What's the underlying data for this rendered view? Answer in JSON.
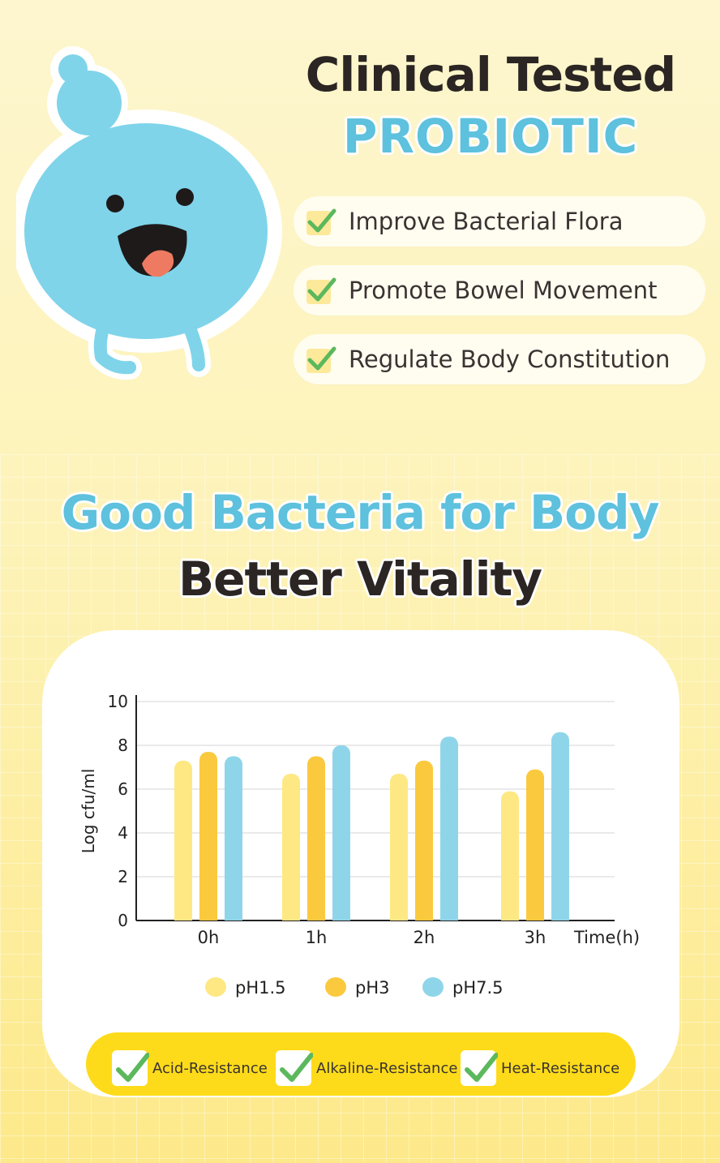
{
  "header": {
    "line1": "Clinical Tested",
    "line2": "PROBIOTIC"
  },
  "benefits": [
    {
      "label": "Improve Bacterial Flora"
    },
    {
      "label": "Promote Bowel Movement"
    },
    {
      "label": "Regulate Body Constitution"
    }
  ],
  "section": {
    "line1": "Good Bacteria for Body",
    "line2": "Better Vitality"
  },
  "chart_data": {
    "type": "bar",
    "categories": [
      "0h",
      "1h",
      "2h",
      "3h"
    ],
    "series": [
      {
        "name": "pH1.5",
        "color": "#fde883",
        "values": [
          7.3,
          6.7,
          6.7,
          5.9
        ]
      },
      {
        "name": "pH3",
        "color": "#fbc93d",
        "values": [
          7.7,
          7.5,
          7.3,
          6.9
        ]
      },
      {
        "name": "pH7.5",
        "color": "#8fd5ea",
        "values": [
          7.5,
          8.0,
          8.4,
          8.6
        ]
      }
    ],
    "xlabel": "Time(h)",
    "ylabel": "Log cfu/ml",
    "ylim": [
      0,
      10
    ],
    "yticks": [
      0,
      2,
      4,
      6,
      8,
      10
    ],
    "grid": true,
    "legend": "bottom"
  },
  "badges": [
    {
      "label": "Acid-Resistance"
    },
    {
      "label": "Alkaline-Resistance"
    },
    {
      "label": "Heat-Resistance"
    }
  ],
  "colors": {
    "accent_blue": "#5ec1dd",
    "dark_text": "#2b2523",
    "check_green": "#5cb85c",
    "badge_yellow": "#fedb1a"
  }
}
